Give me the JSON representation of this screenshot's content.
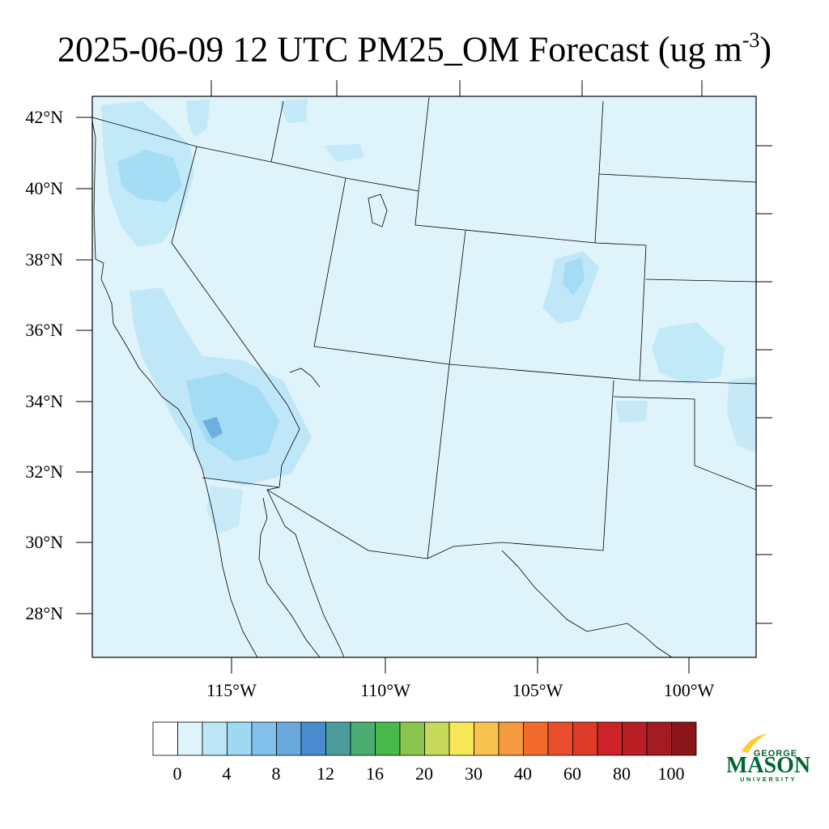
{
  "title": {
    "prefix": "2025-06-09 12 UTC PM25_OM Forecast (ug m",
    "exponent": "-3",
    "suffix": ")"
  },
  "map": {
    "lat_labels": [
      "42°N",
      "40°N",
      "38°N",
      "36°N",
      "34°N",
      "32°N",
      "30°N",
      "28°N"
    ],
    "lon_labels": [
      "115°W",
      "110°W",
      "105°W",
      "100°W"
    ],
    "background_color": "#dff3fb",
    "border_color": "#000000"
  },
  "colorbar": {
    "labels": [
      "0",
      "4",
      "8",
      "12",
      "16",
      "20",
      "30",
      "40",
      "60",
      "80",
      "100"
    ],
    "colors": [
      "#ffffff",
      "#dff3fb",
      "#bde6f7",
      "#9ed9f4",
      "#82c2ea",
      "#69a9de",
      "#4a8ccf",
      "#4b9c9b",
      "#4bab70",
      "#4ab94b",
      "#8ac54e",
      "#c6d95a",
      "#f8e857",
      "#f8c24e",
      "#f69a3f",
      "#f26a2c",
      "#e84e2d",
      "#de3a28",
      "#cd2229",
      "#b91e24",
      "#a31c22",
      "#8b1518"
    ]
  },
  "logo": {
    "top_text": "GEORGE",
    "main_text": "MASON",
    "bottom_text": "UNIVERSITY",
    "green": "#006633",
    "gold": "#ffcc33"
  }
}
